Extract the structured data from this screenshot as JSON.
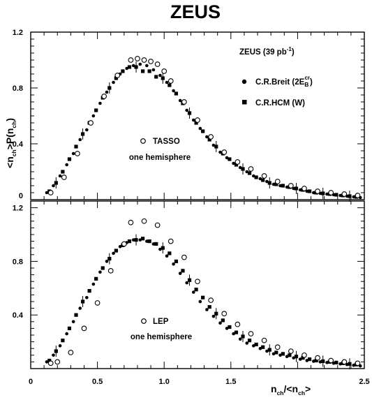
{
  "title": "ZEUS",
  "ylabel": {
    "a": "<n",
    "b": "ch",
    "c": ">P(n",
    "d": "ch",
    "e": ")"
  },
  "xlabel": {
    "a": "n",
    "b": "ch",
    "c": "/<n",
    "d": "ch",
    "e": ">"
  },
  "legend": {
    "dataset": "ZEUS (39 pb",
    "dataset_sup": "-1",
    "dataset_close": ")",
    "breit_prefix": "C.R.Breit (2E",
    "breit_sub": "B",
    "breit_sup": "cr",
    "breit_close": ")",
    "hcm": "C.R.HCM (W)"
  },
  "colors": {
    "ink": "#000000",
    "background": "#ffffff"
  },
  "chart_data": [
    {
      "type": "scatter",
      "panel": "top",
      "annotation": [
        "TASSO",
        "one hemisphere"
      ],
      "xlim": [
        0,
        2.5
      ],
      "ylim": [
        0,
        1.2
      ],
      "y_ticks": [
        "0",
        "0.4",
        "0.8",
        "1.2"
      ],
      "grid": false,
      "series": [
        {
          "name": "C.R.Breit (2E_B^cr)",
          "marker": "filled-circle",
          "x": [
            0.12,
            0.17,
            0.22,
            0.27,
            0.32,
            0.37,
            0.42,
            0.47,
            0.52,
            0.57,
            0.62,
            0.67,
            0.72,
            0.77,
            0.82,
            0.87,
            0.92,
            0.97,
            1.02,
            1.07,
            1.12,
            1.17,
            1.22,
            1.27,
            1.32,
            1.37,
            1.42,
            1.47,
            1.52,
            1.57,
            1.62,
            1.67,
            1.72,
            1.77,
            1.82,
            1.87,
            1.92,
            1.97,
            2.02,
            2.07,
            2.12,
            2.17,
            2.22,
            2.27,
            2.32,
            2.37,
            2.42,
            2.47
          ],
          "y": [
            0.05,
            0.1,
            0.17,
            0.25,
            0.33,
            0.43,
            0.5,
            0.6,
            0.69,
            0.77,
            0.84,
            0.9,
            0.94,
            0.96,
            0.97,
            0.96,
            0.93,
            0.89,
            0.84,
            0.78,
            0.71,
            0.64,
            0.57,
            0.51,
            0.45,
            0.39,
            0.34,
            0.3,
            0.26,
            0.23,
            0.2,
            0.17,
            0.15,
            0.13,
            0.11,
            0.1,
            0.09,
            0.08,
            0.07,
            0.06,
            0.05,
            0.045,
            0.04,
            0.035,
            0.03,
            0.025,
            0.02,
            0.015
          ]
        },
        {
          "name": "C.R.HCM (W)",
          "marker": "filled-square",
          "x": [
            0.14,
            0.19,
            0.24,
            0.29,
            0.34,
            0.39,
            0.44,
            0.49,
            0.54,
            0.59,
            0.64,
            0.69,
            0.74,
            0.79,
            0.84,
            0.89,
            0.94,
            0.99,
            1.04,
            1.09,
            1.14,
            1.19,
            1.24,
            1.29,
            1.34,
            1.39,
            1.44,
            1.49,
            1.54,
            1.59,
            1.64,
            1.69,
            1.74,
            1.79,
            1.84,
            1.89,
            1.94,
            1.99,
            2.04,
            2.09,
            2.14,
            2.19,
            2.24,
            2.29,
            2.34,
            2.39,
            2.44
          ],
          "y": [
            0.06,
            0.12,
            0.2,
            0.29,
            0.38,
            0.47,
            0.55,
            0.64,
            0.73,
            0.8,
            0.87,
            0.92,
            0.95,
            0.95,
            0.92,
            0.92,
            0.88,
            0.87,
            0.82,
            0.76,
            0.69,
            0.62,
            0.55,
            0.49,
            0.43,
            0.38,
            0.33,
            0.29,
            0.25,
            0.22,
            0.19,
            0.16,
            0.14,
            0.12,
            0.11,
            0.1,
            0.09,
            0.08,
            0.07,
            0.06,
            0.05,
            0.045,
            0.04,
            0.035,
            0.03,
            0.025,
            0.02
          ]
        },
        {
          "name": "TASSO one hemisphere",
          "marker": "open-circle",
          "x": [
            0.15,
            0.25,
            0.35,
            0.45,
            0.55,
            0.65,
            0.75,
            0.8,
            0.85,
            0.9,
            0.95,
            1.0,
            1.05,
            1.15,
            1.25,
            1.35,
            1.45,
            1.55,
            1.65,
            1.75,
            1.85,
            1.95,
            2.05,
            2.15,
            2.25,
            2.35,
            2.45
          ],
          "y": [
            0.05,
            0.16,
            0.33,
            0.55,
            0.74,
            0.89,
            1.0,
            1.01,
            1.0,
            0.99,
            0.97,
            0.92,
            0.85,
            0.7,
            0.57,
            0.45,
            0.34,
            0.27,
            0.22,
            0.17,
            0.13,
            0.1,
            0.08,
            0.06,
            0.05,
            0.04,
            0.03
          ]
        }
      ]
    },
    {
      "type": "scatter",
      "panel": "bottom",
      "annotation": [
        "LEP",
        "one hemisphere"
      ],
      "xlim": [
        0,
        2.5
      ],
      "ylim": [
        0,
        1.25
      ],
      "x_ticks": [
        "0",
        "0.5",
        "1.0",
        "1.5",
        "2.5"
      ],
      "y_ticks": [
        "0.4",
        "0.8",
        "1.2"
      ],
      "grid": false,
      "series": [
        {
          "name": "C.R.Breit (2E_B^cr)",
          "marker": "filled-circle",
          "x": [
            0.12,
            0.17,
            0.22,
            0.27,
            0.32,
            0.37,
            0.42,
            0.47,
            0.52,
            0.57,
            0.62,
            0.67,
            0.72,
            0.77,
            0.82,
            0.87,
            0.92,
            0.97,
            1.02,
            1.07,
            1.12,
            1.17,
            1.22,
            1.27,
            1.32,
            1.37,
            1.42,
            1.47,
            1.52,
            1.57,
            1.62,
            1.67,
            1.72,
            1.77,
            1.82,
            1.87,
            1.92,
            1.97,
            2.02,
            2.07,
            2.12,
            2.17,
            2.22,
            2.27,
            2.32,
            2.37,
            2.42,
            2.47
          ],
          "y": [
            0.05,
            0.1,
            0.17,
            0.26,
            0.35,
            0.45,
            0.53,
            0.63,
            0.72,
            0.8,
            0.86,
            0.91,
            0.94,
            0.96,
            0.96,
            0.95,
            0.93,
            0.89,
            0.84,
            0.78,
            0.71,
            0.64,
            0.57,
            0.5,
            0.44,
            0.39,
            0.34,
            0.3,
            0.26,
            0.22,
            0.19,
            0.17,
            0.15,
            0.13,
            0.11,
            0.1,
            0.09,
            0.08,
            0.07,
            0.06,
            0.055,
            0.05,
            0.045,
            0.04,
            0.035,
            0.03,
            0.025,
            0.02
          ]
        },
        {
          "name": "C.R.HCM (W)",
          "marker": "filled-square",
          "x": [
            0.14,
            0.19,
            0.24,
            0.29,
            0.34,
            0.39,
            0.44,
            0.49,
            0.54,
            0.59,
            0.64,
            0.69,
            0.74,
            0.79,
            0.84,
            0.89,
            0.94,
            0.99,
            1.04,
            1.09,
            1.14,
            1.19,
            1.24,
            1.29,
            1.34,
            1.39,
            1.44,
            1.49,
            1.54,
            1.59,
            1.64,
            1.69,
            1.74,
            1.79,
            1.84,
            1.89,
            1.94,
            1.99,
            2.04,
            2.09,
            2.14,
            2.19,
            2.24,
            2.29,
            2.34,
            2.39,
            2.44
          ],
          "y": [
            0.06,
            0.13,
            0.21,
            0.3,
            0.4,
            0.5,
            0.58,
            0.67,
            0.75,
            0.82,
            0.88,
            0.92,
            0.95,
            0.96,
            0.97,
            0.95,
            0.93,
            0.9,
            0.86,
            0.8,
            0.73,
            0.66,
            0.59,
            0.53,
            0.46,
            0.41,
            0.36,
            0.31,
            0.27,
            0.24,
            0.21,
            0.18,
            0.16,
            0.14,
            0.12,
            0.11,
            0.1,
            0.09,
            0.08,
            0.07,
            0.06,
            0.055,
            0.05,
            0.045,
            0.04,
            0.035,
            0.03
          ]
        },
        {
          "name": "LEP one hemisphere",
          "marker": "open-circle",
          "x": [
            0.15,
            0.2,
            0.3,
            0.4,
            0.5,
            0.6,
            0.7,
            0.75,
            0.85,
            0.95,
            1.05,
            1.15,
            1.25,
            1.35,
            1.45,
            1.55,
            1.65,
            1.75,
            1.85,
            1.95,
            2.05,
            2.15,
            2.25,
            2.35,
            2.45
          ],
          "y": [
            0.04,
            0.05,
            0.12,
            0.3,
            0.49,
            0.73,
            0.93,
            1.09,
            1.1,
            1.07,
            0.95,
            0.83,
            0.65,
            0.51,
            0.41,
            0.33,
            0.26,
            0.21,
            0.16,
            0.13,
            0.1,
            0.08,
            0.06,
            0.05,
            0.04
          ]
        }
      ]
    }
  ]
}
